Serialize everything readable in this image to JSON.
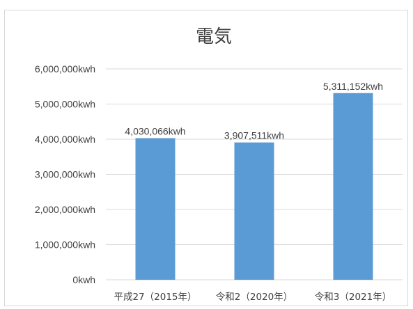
{
  "chart_data": {
    "type": "bar",
    "title": "電気",
    "categories": [
      "平成27（2015年）",
      "令和2（2020年）",
      "令和3（2021年）"
    ],
    "values": [
      4030066,
      3907511,
      5311152
    ],
    "data_labels": [
      "4,030,066kwh",
      "3,907,511kwh",
      "5,311,152kwh"
    ],
    "ylim": [
      0,
      6000000
    ],
    "ytick_labels": [
      "0kwh",
      "1,000,000kwh",
      "2,000,000kwh",
      "3,000,000kwh",
      "4,000,000kwh",
      "5,000,000kwh",
      "6,000,000kwh"
    ],
    "xlabel": "",
    "ylabel": "",
    "grid": true,
    "colors": {
      "bar": "#5b9bd5",
      "grid": "#d9d9d9",
      "text": "#404040"
    }
  }
}
